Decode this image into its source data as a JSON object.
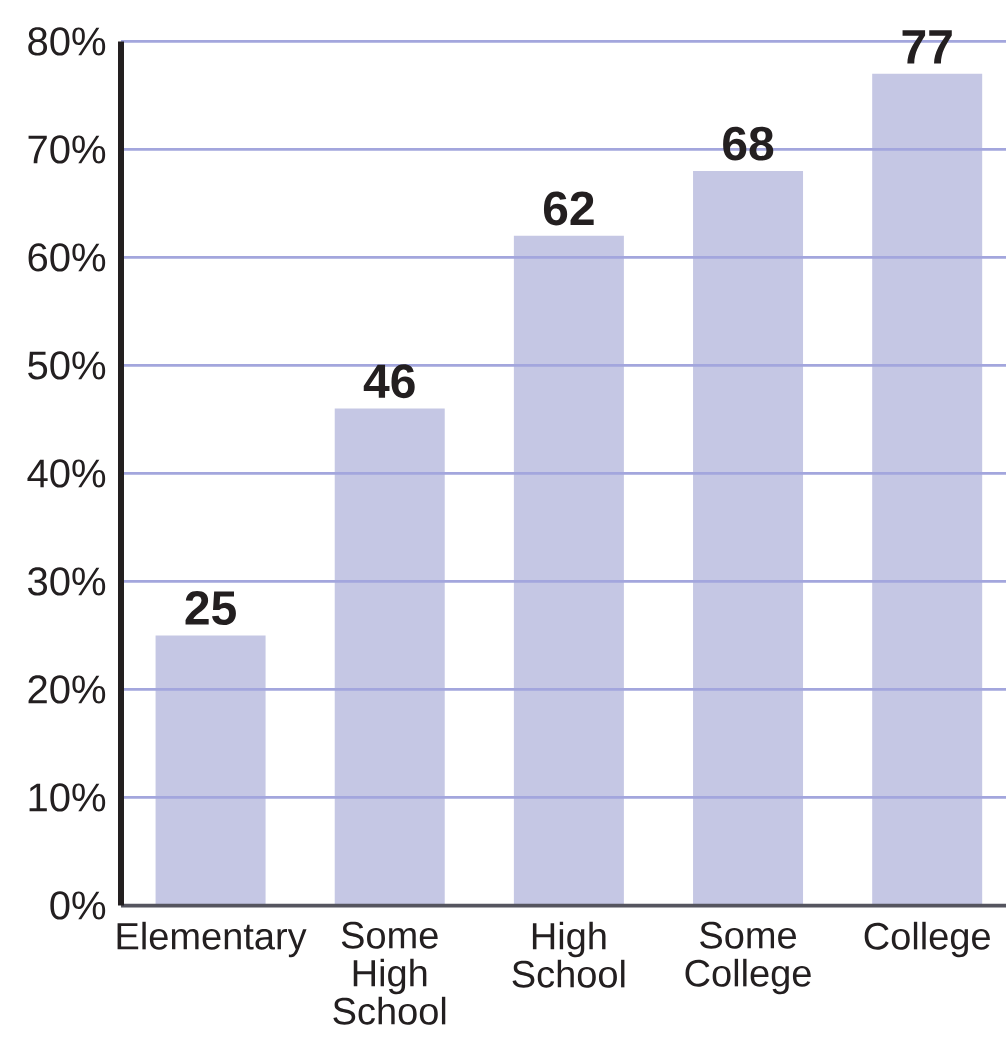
{
  "chart_data": {
    "type": "bar",
    "categories": [
      "Elementary",
      "Some High School",
      "High School",
      "Some College",
      "College"
    ],
    "values": [
      25,
      46,
      62,
      68,
      77
    ],
    "color": "#c5c7e4",
    "ylim": [
      0,
      80
    ],
    "yticks": [
      {
        "value": 0,
        "label": "0%"
      },
      {
        "value": 10,
        "label": "10%"
      },
      {
        "value": 20,
        "label": "20%"
      },
      {
        "value": 30,
        "label": "30%"
      },
      {
        "value": 40,
        "label": "40%"
      },
      {
        "value": 50,
        "label": "50%"
      },
      {
        "value": 60,
        "label": "60%"
      },
      {
        "value": 70,
        "label": "70%"
      },
      {
        "value": 80,
        "label": "80%"
      }
    ],
    "grid": "y",
    "data_labels": true
  }
}
